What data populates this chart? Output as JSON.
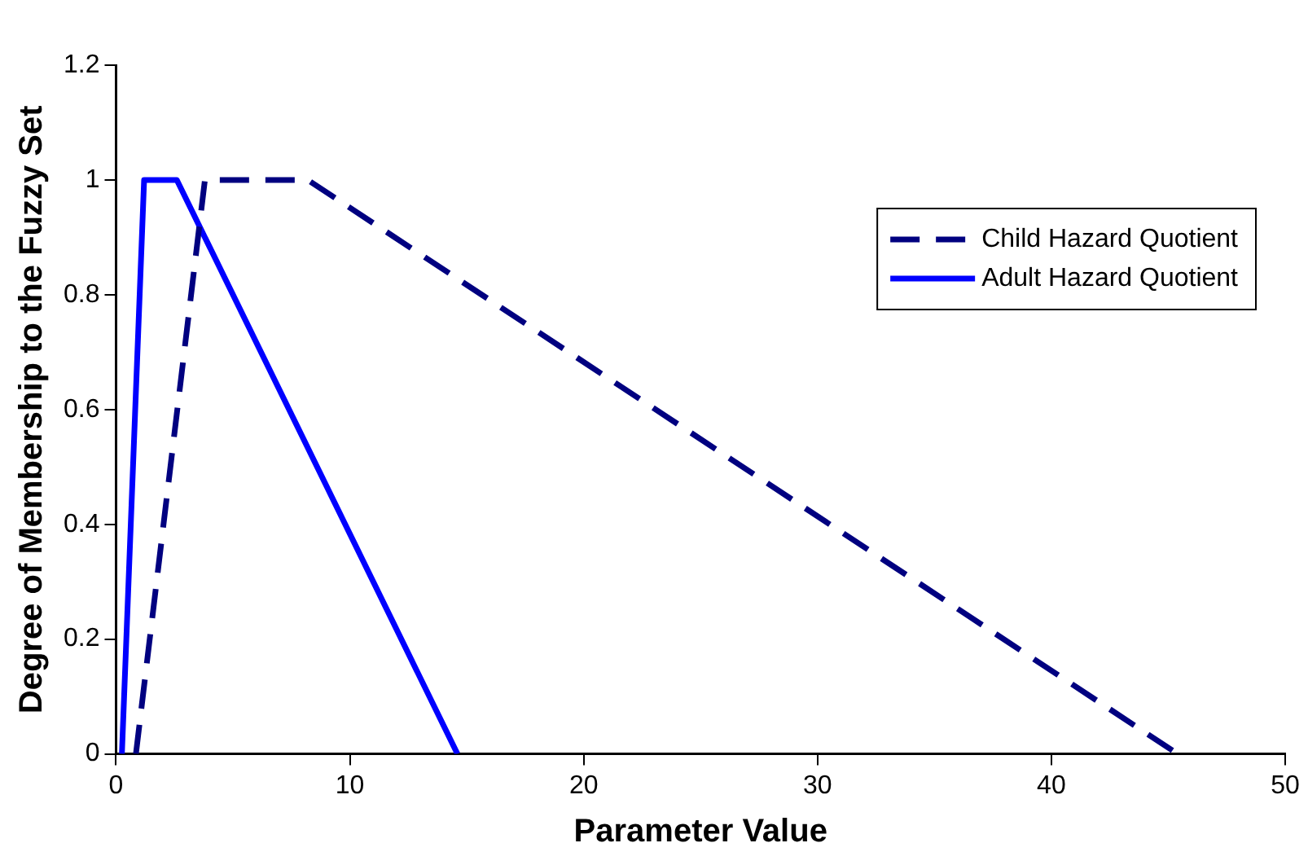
{
  "chart_data": {
    "type": "line",
    "xlabel": "Parameter Value",
    "ylabel": "Degree of Membership to the Fuzzy Set",
    "series": [
      {
        "name": "Child Hazard Quotient",
        "color": "#000080",
        "line_style": "dashed",
        "x": [
          0.85,
          3.8,
          8.2,
          45.4
        ],
        "values": [
          0,
          1,
          1,
          0
        ]
      },
      {
        "name": "Adult Hazard Quotient",
        "color": "#0000ff",
        "line_style": "solid",
        "x": [
          0.25,
          1.2,
          2.6,
          14.6
        ],
        "values": [
          0,
          1,
          1,
          0
        ]
      }
    ],
    "xlim": [
      0,
      50
    ],
    "xticks": [
      0,
      10,
      20,
      30,
      40,
      50
    ],
    "ylim": [
      0,
      1.2
    ],
    "yticks": [
      0,
      0.2,
      0.4,
      0.6,
      0.8,
      1,
      1.2
    ],
    "grid": false,
    "legend": "top right",
    "marker": "none"
  }
}
